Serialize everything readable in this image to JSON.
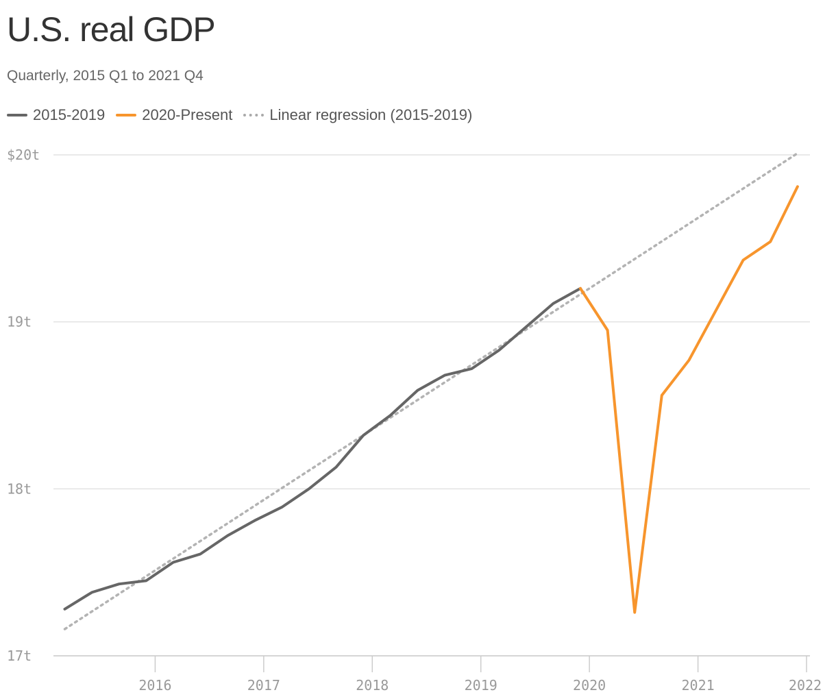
{
  "title": "U.S. real GDP",
  "subtitle": "Quarterly, 2015 Q1 to 2021 Q4",
  "colors": {
    "series_2015_2019": "#666666",
    "series_2020_present": "#f7952d",
    "regression": "#b3b3b3",
    "grid": "#e2e2e2",
    "axis_text": "#999999"
  },
  "legend": [
    {
      "label": "2015-2019",
      "style": "solid",
      "color": "#666666"
    },
    {
      "label": "2020-Present",
      "style": "solid",
      "color": "#f7952d"
    },
    {
      "label": "Linear regression (2015-2019)",
      "style": "dotted",
      "color": "#b3b3b3"
    }
  ],
  "chart_data": {
    "type": "line",
    "title": "U.S. real GDP",
    "subtitle": "Quarterly, 2015 Q1 to 2021 Q4",
    "xlabel": "",
    "ylabel": "",
    "ylim": [
      17,
      20
    ],
    "xlim": [
      2015.125,
      2021.99
    ],
    "y_ticks": [
      {
        "value": 20,
        "label": "$20t"
      },
      {
        "value": 19,
        "label": "19t"
      },
      {
        "value": 18,
        "label": "18t"
      },
      {
        "value": 17,
        "label": "17t"
      }
    ],
    "x_ticks": [
      {
        "value": 2016,
        "label": "2016"
      },
      {
        "value": 2017,
        "label": "2017"
      },
      {
        "value": 2018,
        "label": "2018"
      },
      {
        "value": 2019,
        "label": "2019"
      },
      {
        "value": 2020,
        "label": "2020"
      },
      {
        "value": 2021,
        "label": "2021"
      },
      {
        "value": 2022,
        "label": "2022"
      }
    ],
    "grid": "horizontal",
    "series": [
      {
        "name": "2015-2019",
        "color": "#666666",
        "style": "solid",
        "x": [
          2015.167,
          2015.417,
          2015.667,
          2015.917,
          2016.167,
          2016.417,
          2016.667,
          2016.917,
          2017.167,
          2017.417,
          2017.667,
          2017.917,
          2018.167,
          2018.417,
          2018.667,
          2018.917,
          2019.167,
          2019.417,
          2019.667,
          2019.917
        ],
        "values": [
          17.28,
          17.38,
          17.43,
          17.45,
          17.56,
          17.61,
          17.72,
          17.81,
          17.89,
          18.0,
          18.13,
          18.32,
          18.44,
          18.59,
          18.68,
          18.72,
          18.83,
          18.97,
          19.11,
          19.2
        ]
      },
      {
        "name": "2020-Present",
        "color": "#f7952d",
        "style": "solid",
        "x": [
          2019.917,
          2020.167,
          2020.417,
          2020.667,
          2020.917,
          2021.167,
          2021.417,
          2021.667,
          2021.917
        ],
        "values": [
          19.2,
          18.95,
          17.26,
          18.56,
          18.77,
          19.07,
          19.37,
          19.48,
          19.81
        ]
      },
      {
        "name": "Linear regression (2015-2019)",
        "color": "#b3b3b3",
        "style": "dotted",
        "x": [
          2015.167,
          2021.917
        ],
        "values": [
          17.16,
          20.01
        ]
      }
    ]
  }
}
